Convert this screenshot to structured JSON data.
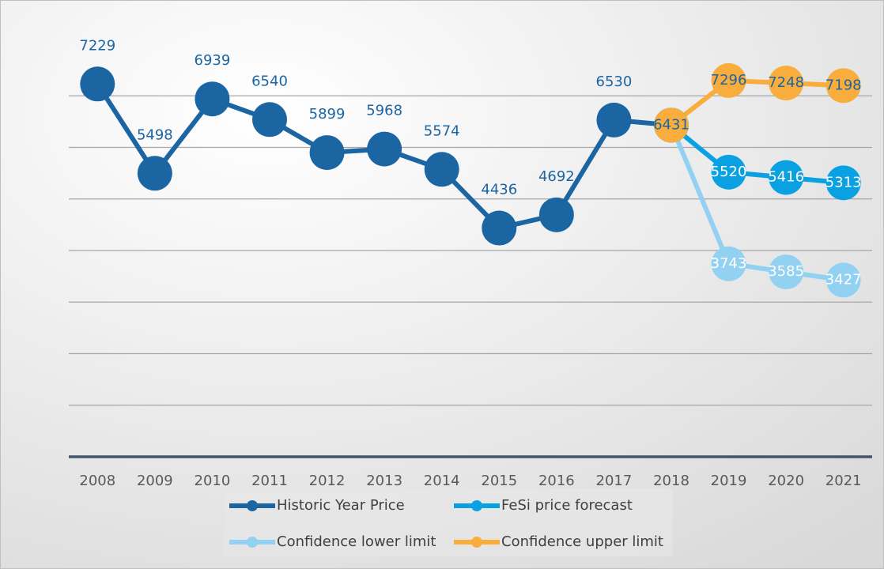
{
  "chart_data": {
    "type": "line",
    "categories": [
      "2008",
      "2009",
      "2010",
      "2011",
      "2012",
      "2013",
      "2014",
      "2015",
      "2016",
      "2017",
      "2018",
      "2019",
      "2020",
      "2021"
    ],
    "series": [
      {
        "name": "Historic Year Price",
        "color": "#1b65a3",
        "label_color": "#1b65a3",
        "values": [
          7229,
          5498,
          6939,
          6540,
          5899,
          5968,
          5574,
          4436,
          4692,
          6530,
          6431,
          null,
          null,
          null
        ]
      },
      {
        "name": "FeSi price forecast",
        "color": "#0aa1e2",
        "label_color": "#ffffff",
        "values": [
          null,
          null,
          null,
          null,
          null,
          null,
          null,
          null,
          null,
          null,
          6431,
          5520,
          5416,
          5313
        ]
      },
      {
        "name": "Confidence lower limit",
        "color": "#92d1f1",
        "label_color": "#ffffff",
        "values": [
          null,
          null,
          null,
          null,
          null,
          null,
          null,
          null,
          null,
          null,
          6431,
          3743,
          3585,
          3427
        ]
      },
      {
        "name": "Confidence upper limit",
        "color": "#f8ad3c",
        "label_color": "#1b65a3",
        "values": [
          null,
          null,
          null,
          null,
          null,
          null,
          null,
          null,
          null,
          null,
          6431,
          7296,
          7248,
          7198
        ]
      }
    ],
    "ylim": [
      0,
      8000
    ],
    "yticks": [
      0,
      1000,
      2000,
      3000,
      4000,
      5000,
      6000,
      7000
    ],
    "grid": true
  }
}
